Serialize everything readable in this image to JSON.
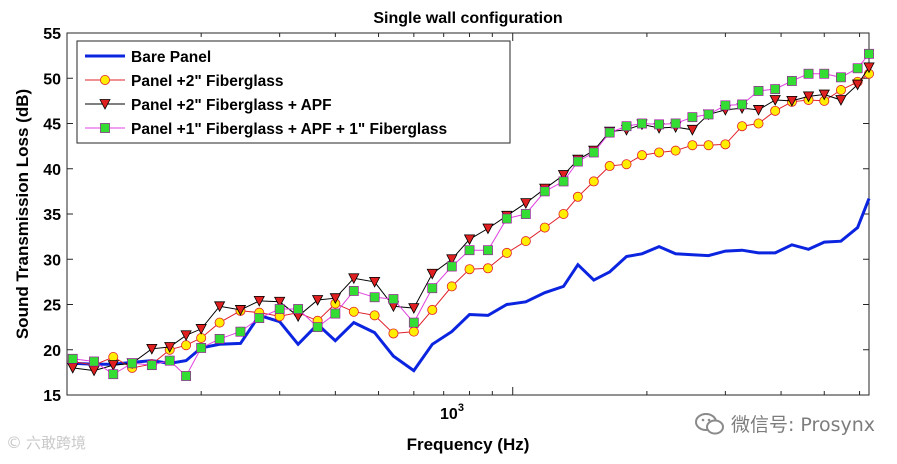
{
  "chart_data": {
    "type": "line",
    "title": "Single wall configuration",
    "xlabel": "Frequency (Hz)",
    "ylabel": "Sound Transmission Loss (dB)",
    "xscale": "log",
    "xlim": [
      100,
      6300
    ],
    "ylim": [
      15,
      55
    ],
    "yticks": [
      15,
      20,
      25,
      30,
      35,
      40,
      45,
      50,
      55
    ],
    "xtick_main": {
      "value": 1000,
      "base": "10",
      "exp": "3"
    },
    "legend_position": "top-left",
    "series": [
      {
        "name": "Bare Panel",
        "color": "#0b24e0",
        "marker": "none",
        "x": [
          103,
          115,
          127,
          140,
          155,
          170,
          185,
          200,
          220,
          245,
          270,
          300,
          330,
          365,
          400,
          440,
          490,
          540,
          600,
          660,
          730,
          800,
          880,
          970,
          1070,
          1180,
          1300,
          1400,
          1520,
          1650,
          1800,
          1950,
          2130,
          2320,
          2530,
          2750,
          3000,
          3270,
          3560,
          3880,
          4230,
          4610,
          5000,
          5450,
          5940,
          6300
        ],
        "values": [
          18.5,
          18.4,
          18.4,
          18.6,
          18.8,
          18.5,
          18.8,
          20.2,
          20.6,
          20.7,
          23.8,
          23.1,
          20.6,
          22.8,
          21.0,
          23.0,
          21.9,
          19.3,
          17.7,
          20.6,
          22.0,
          23.9,
          23.8,
          25.0,
          25.3,
          26.3,
          27.0,
          29.4,
          27.7,
          28.6,
          30.3,
          30.6,
          31.4,
          30.6,
          30.5,
          30.4,
          30.9,
          31.0,
          30.7,
          30.7,
          31.6,
          31.1,
          31.9,
          32.0,
          33.5,
          36.7
        ]
      },
      {
        "name": "Panel +2\" Fiberglass",
        "color": "#e0202a",
        "marker": "circle",
        "markerFill": "#ffee00",
        "x": [
          103,
          115,
          127,
          140,
          155,
          170,
          185,
          200,
          220,
          245,
          270,
          300,
          330,
          365,
          400,
          440,
          490,
          540,
          600,
          660,
          730,
          800,
          880,
          970,
          1070,
          1180,
          1300,
          1400,
          1520,
          1650,
          1800,
          1950,
          2130,
          2320,
          2530,
          2750,
          3000,
          3270,
          3560,
          3880,
          4230,
          4610,
          5000,
          5450,
          5940,
          6300
        ],
        "values": [
          18.7,
          18.3,
          19.2,
          18.0,
          18.4,
          20.0,
          20.5,
          21.3,
          23.0,
          24.3,
          24.1,
          23.7,
          24.1,
          23.2,
          25.1,
          24.2,
          23.8,
          21.8,
          22.0,
          24.4,
          27.0,
          28.9,
          29.0,
          30.7,
          32.0,
          33.5,
          35.0,
          36.9,
          38.6,
          40.3,
          40.5,
          41.5,
          41.8,
          42.0,
          42.6,
          42.6,
          42.7,
          44.7,
          45.0,
          46.4,
          47.4,
          47.6,
          47.5,
          48.7,
          49.6,
          50.5
        ]
      },
      {
        "name": "Panel +2\" Fiberglass + APF",
        "color": "#000000",
        "marker": "triangle",
        "markerFill": "#e02020",
        "x": [
          103,
          115,
          127,
          140,
          155,
          170,
          185,
          200,
          220,
          245,
          270,
          300,
          330,
          365,
          400,
          440,
          490,
          540,
          600,
          660,
          730,
          800,
          880,
          970,
          1070,
          1180,
          1300,
          1400,
          1520,
          1650,
          1800,
          1950,
          2130,
          2320,
          2530,
          2750,
          3000,
          3270,
          3560,
          3880,
          4230,
          4610,
          5000,
          5450,
          5940,
          6300
        ],
        "values": [
          18.0,
          17.7,
          18.3,
          18.5,
          20.1,
          20.3,
          21.6,
          22.3,
          24.8,
          24.4,
          25.4,
          25.3,
          23.7,
          25.5,
          25.7,
          27.9,
          27.5,
          24.8,
          24.6,
          28.4,
          30.0,
          32.2,
          33.4,
          34.8,
          36.2,
          37.8,
          39.3,
          41.0,
          42.0,
          44.1,
          44.3,
          44.9,
          44.5,
          44.6,
          44.3,
          46.0,
          46.5,
          46.7,
          46.5,
          47.6,
          47.5,
          48.0,
          48.2,
          47.6,
          49.3,
          51.2
        ]
      },
      {
        "name": "Panel +1\" Fiberglass + APF + 1\" Fiberglass",
        "color": "#e040e0",
        "marker": "square",
        "markerFill": "#33dd33",
        "x": [
          103,
          115,
          127,
          140,
          155,
          170,
          185,
          200,
          220,
          245,
          270,
          300,
          330,
          365,
          400,
          440,
          490,
          540,
          600,
          660,
          730,
          800,
          880,
          970,
          1070,
          1180,
          1300,
          1400,
          1520,
          1650,
          1800,
          1950,
          2130,
          2320,
          2530,
          2750,
          3000,
          3270,
          3560,
          3880,
          4230,
          4610,
          5000,
          5450,
          5940,
          6300
        ],
        "values": [
          19.0,
          18.7,
          17.3,
          18.5,
          18.3,
          18.8,
          17.1,
          20.2,
          21.2,
          22.0,
          23.5,
          24.5,
          24.5,
          22.5,
          24.0,
          26.5,
          25.8,
          25.6,
          23.0,
          26.8,
          29.2,
          31.0,
          31.0,
          34.5,
          35.0,
          37.5,
          38.6,
          40.8,
          41.8,
          44.0,
          44.7,
          45.0,
          44.9,
          45.0,
          45.7,
          46.0,
          47.0,
          47.1,
          48.6,
          48.8,
          49.7,
          50.5,
          50.5,
          50.1,
          51.1,
          52.7
        ]
      }
    ]
  },
  "watermarks": {
    "right": "微信号: Prosynx",
    "left": "六敢跨境"
  }
}
